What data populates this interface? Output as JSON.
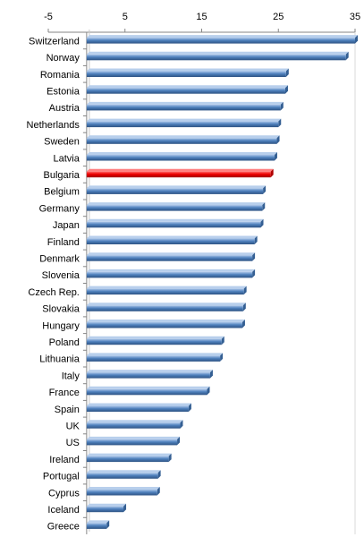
{
  "chart_data": {
    "type": "bar",
    "orientation": "horizontal",
    "title": "",
    "xlabel": "",
    "ylabel": "",
    "xlim": [
      -5,
      35
    ],
    "x_ticks": [
      -5,
      5,
      15,
      25,
      35
    ],
    "grid": false,
    "legend": "none",
    "categories": [
      "Switzerland",
      "Norway",
      "Romania",
      "Estonia",
      "Austria",
      "Netherlands",
      "Sweden",
      "Latvia",
      "Bulgaria",
      "Belgium",
      "Germany",
      "Japan",
      "Finland",
      "Denmark",
      "Slovenia",
      "Czech Rep.",
      "Slovakia",
      "Hungary",
      "Poland",
      "Lithuania",
      "Italy",
      "France",
      "Spain",
      "UK",
      "US",
      "Ireland",
      "Portugal",
      "Cyprus",
      "Iceland",
      "Greece"
    ],
    "values": [
      35.0,
      33.8,
      26.0,
      25.9,
      25.3,
      25.0,
      24.8,
      24.5,
      24.0,
      23.0,
      22.9,
      22.7,
      21.9,
      21.6,
      21.6,
      20.5,
      20.4,
      20.3,
      17.6,
      17.4,
      16.1,
      15.7,
      13.3,
      12.2,
      11.8,
      10.7,
      9.3,
      9.2,
      4.8,
      2.6
    ],
    "highlight": "Bulgaria",
    "colors": {
      "bar": "#4f81bd",
      "bar_highlight": "#ff0000",
      "axis": "#868686"
    }
  }
}
